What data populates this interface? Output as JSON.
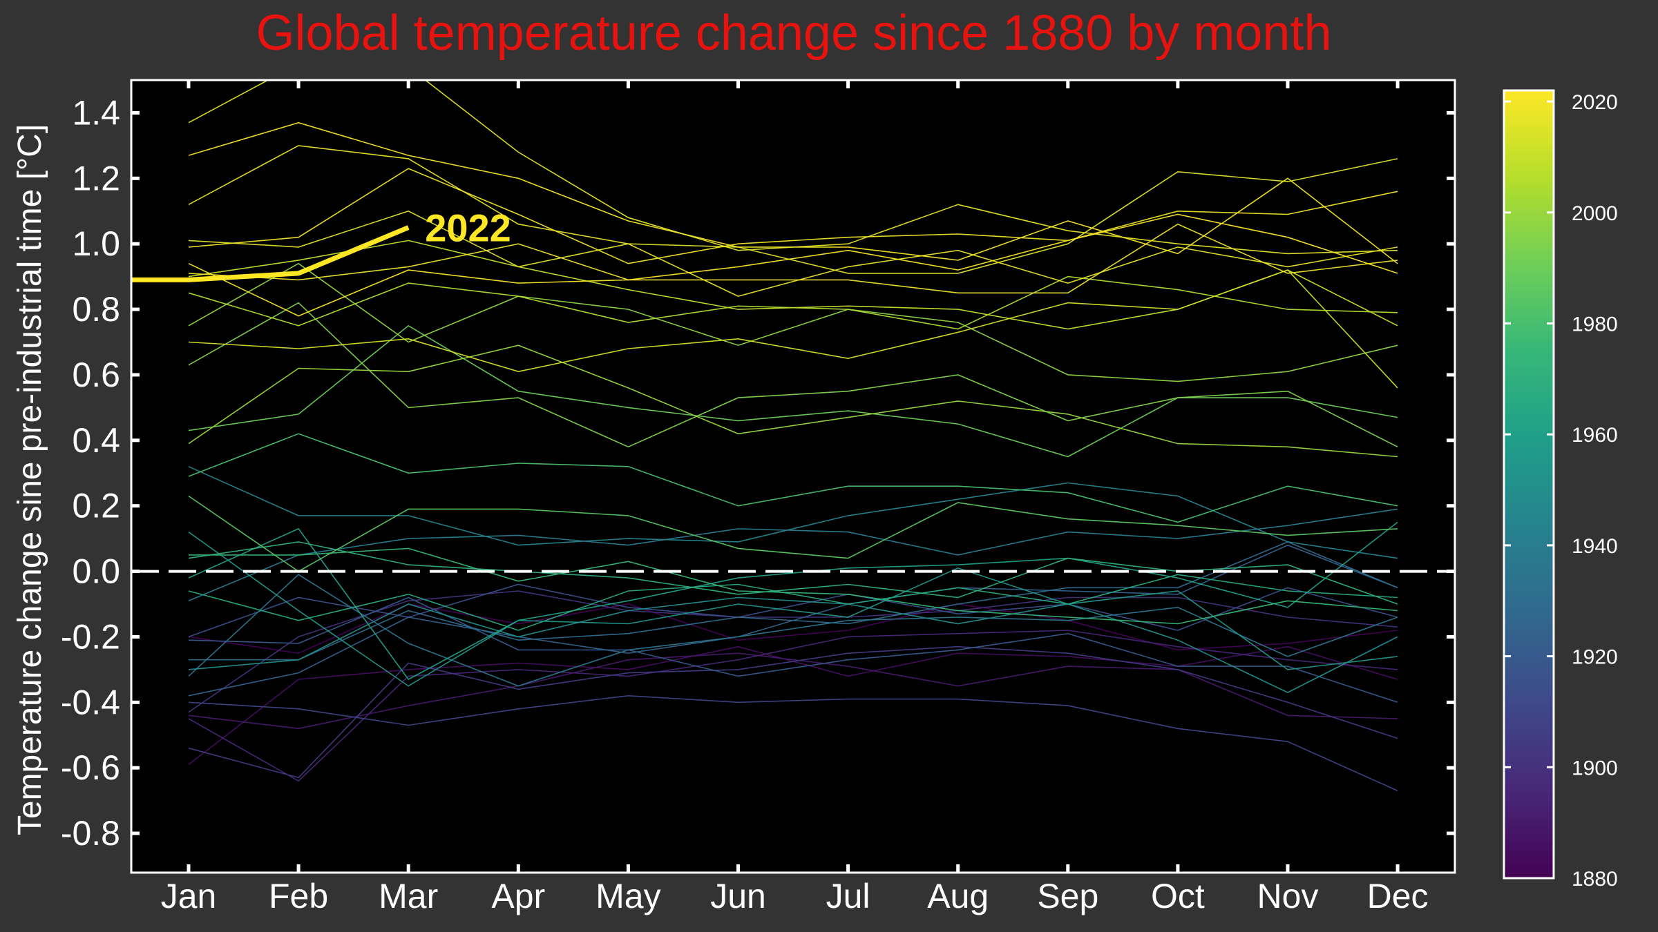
{
  "chart_data": {
    "type": "line",
    "title": "Global temperature change since 1880 by month",
    "ylabel": "Temperature change sine pre-industrial time [°C]",
    "xlabel": "",
    "categories": [
      "Jan",
      "Feb",
      "Mar",
      "Apr",
      "May",
      "Jun",
      "Jul",
      "Aug",
      "Sep",
      "Oct",
      "Nov",
      "Dec"
    ],
    "ylim": [
      -0.92,
      1.5
    ],
    "yticks": [
      -0.8,
      -0.6,
      -0.4,
      -0.2,
      0.0,
      0.2,
      0.4,
      0.6,
      0.8,
      1.0,
      1.2,
      1.4
    ],
    "ytick_labels": [
      "-0.8",
      "-0.6",
      "-0.4",
      "-0.2",
      "0.0",
      "0.2",
      "0.4",
      "0.6",
      "0.8",
      "1.0",
      "1.2",
      "1.4"
    ],
    "grid": false,
    "reference_line": {
      "y": 0.0,
      "color": "#ffffff",
      "style": "dashed"
    },
    "colorbar": {
      "colormap": "viridis",
      "range": [
        1880,
        2022
      ],
      "ticks": [
        1880,
        1900,
        1920,
        1940,
        1960,
        1980,
        2000,
        2020
      ],
      "tick_labels": [
        "1880",
        "1900",
        "1920",
        "1940",
        "1960",
        "1980",
        "2000",
        "2020"
      ],
      "colors": [
        "#440154",
        "#482878",
        "#3e4989",
        "#31688e",
        "#26828e",
        "#1f9e89",
        "#35b779",
        "#6ece58",
        "#b5de2b",
        "#fde725"
      ]
    },
    "highlight": {
      "label": "2022",
      "year": 2022,
      "color": "#fde725",
      "values": [
        0.89,
        0.91,
        1.05
      ]
    },
    "series": [
      {
        "year": 1880,
        "values": [
          -0.2,
          -0.25,
          -0.1,
          -0.16,
          -0.1,
          -0.21,
          -0.18,
          -0.1,
          -0.15,
          -0.24,
          -0.22,
          -0.18
        ]
      },
      {
        "year": 1885,
        "values": [
          -0.59,
          -0.33,
          -0.3,
          -0.28,
          -0.3,
          -0.23,
          -0.32,
          -0.25,
          -0.26,
          -0.29,
          -0.23,
          -0.33
        ]
      },
      {
        "year": 1890,
        "values": [
          -0.44,
          -0.48,
          -0.41,
          -0.35,
          -0.27,
          -0.25,
          -0.29,
          -0.35,
          -0.29,
          -0.3,
          -0.44,
          -0.45
        ]
      },
      {
        "year": 1895,
        "values": [
          -0.45,
          -0.64,
          -0.32,
          -0.3,
          -0.32,
          -0.27,
          -0.2,
          -0.19,
          -0.18,
          -0.23,
          -0.27,
          -0.3
        ]
      },
      {
        "year": 1900,
        "values": [
          -0.43,
          -0.2,
          -0.09,
          -0.06,
          -0.12,
          -0.14,
          -0.14,
          -0.12,
          -0.08,
          -0.08,
          -0.14,
          -0.17
        ]
      },
      {
        "year": 1905,
        "values": [
          -0.54,
          -0.63,
          -0.28,
          -0.36,
          -0.31,
          -0.3,
          -0.25,
          -0.23,
          -0.25,
          -0.3,
          -0.4,
          -0.51
        ]
      },
      {
        "year": 1910,
        "values": [
          -0.4,
          -0.42,
          -0.47,
          -0.42,
          -0.38,
          -0.4,
          -0.39,
          -0.39,
          -0.41,
          -0.48,
          -0.52,
          -0.67
        ]
      },
      {
        "year": 1915,
        "values": [
          -0.2,
          -0.08,
          -0.14,
          -0.04,
          -0.11,
          -0.14,
          -0.07,
          -0.13,
          -0.1,
          -0.18,
          -0.05,
          -0.14
        ]
      },
      {
        "year": 1920,
        "values": [
          -0.21,
          -0.22,
          -0.08,
          -0.24,
          -0.24,
          -0.32,
          -0.27,
          -0.24,
          -0.19,
          -0.29,
          -0.29,
          -0.4
        ]
      },
      {
        "year": 1925,
        "values": [
          -0.38,
          -0.31,
          -0.14,
          -0.2,
          -0.25,
          -0.2,
          -0.1,
          -0.05,
          -0.06,
          -0.07,
          0.08,
          -0.05
        ]
      },
      {
        "year": 1930,
        "values": [
          -0.27,
          -0.27,
          -0.12,
          -0.21,
          -0.19,
          -0.14,
          -0.16,
          -0.1,
          -0.05,
          -0.05,
          0.09,
          -0.05
        ]
      },
      {
        "year": 1935,
        "values": [
          -0.32,
          -0.01,
          -0.22,
          -0.35,
          -0.24,
          -0.2,
          -0.15,
          -0.14,
          -0.15,
          -0.11,
          -0.26,
          -0.14
        ]
      },
      {
        "year": 1940,
        "values": [
          -0.09,
          0.05,
          0.1,
          0.11,
          0.08,
          0.13,
          0.12,
          0.05,
          0.12,
          0.1,
          0.14,
          0.19
        ]
      },
      {
        "year": 1944,
        "values": [
          0.32,
          0.17,
          0.17,
          0.08,
          0.1,
          0.09,
          0.17,
          0.22,
          0.27,
          0.23,
          0.09,
          0.04
        ]
      },
      {
        "year": 1950,
        "values": [
          -0.3,
          -0.27,
          -0.1,
          -0.2,
          -0.12,
          -0.08,
          -0.1,
          -0.16,
          -0.1,
          -0.21,
          -0.37,
          -0.2
        ]
      },
      {
        "year": 1955,
        "values": [
          0.12,
          -0.12,
          -0.35,
          -0.15,
          -0.16,
          -0.1,
          -0.14,
          0.01,
          -0.1,
          -0.06,
          -0.3,
          -0.26
        ]
      },
      {
        "year": 1960,
        "values": [
          -0.02,
          0.13,
          -0.33,
          -0.15,
          -0.09,
          -0.02,
          0.01,
          0.02,
          0.04,
          -0.02,
          -0.11,
          0.15
        ]
      },
      {
        "year": 1965,
        "values": [
          -0.06,
          -0.15,
          -0.07,
          -0.18,
          -0.06,
          -0.04,
          -0.1,
          -0.05,
          -0.1,
          -0.01,
          -0.06,
          -0.08
        ]
      },
      {
        "year": 1970,
        "values": [
          0.04,
          0.09,
          0.02,
          0.0,
          -0.02,
          -0.07,
          -0.04,
          -0.08,
          0.04,
          0.0,
          0.02,
          -0.1
        ]
      },
      {
        "year": 1975,
        "values": [
          0.05,
          0.05,
          0.07,
          -0.03,
          0.03,
          -0.06,
          -0.07,
          -0.12,
          -0.14,
          -0.16,
          -0.09,
          -0.12
        ]
      },
      {
        "year": 1980,
        "values": [
          0.29,
          0.42,
          0.3,
          0.33,
          0.32,
          0.2,
          0.26,
          0.26,
          0.24,
          0.15,
          0.26,
          0.2
        ]
      },
      {
        "year": 1985,
        "values": [
          0.23,
          0.0,
          0.19,
          0.19,
          0.17,
          0.07,
          0.04,
          0.21,
          0.16,
          0.14,
          0.11,
          0.13
        ]
      },
      {
        "year": 1990,
        "values": [
          0.43,
          0.48,
          0.75,
          0.55,
          0.5,
          0.46,
          0.49,
          0.45,
          0.35,
          0.53,
          0.53,
          0.47
        ]
      },
      {
        "year": 1995,
        "values": [
          0.63,
          0.82,
          0.5,
          0.53,
          0.38,
          0.53,
          0.55,
          0.6,
          0.46,
          0.53,
          0.55,
          0.38
        ]
      },
      {
        "year": 1998,
        "values": [
          0.75,
          0.94,
          0.7,
          0.84,
          0.8,
          0.69,
          0.8,
          0.76,
          0.6,
          0.58,
          0.61,
          0.69
        ]
      },
      {
        "year": 2000,
        "values": [
          0.39,
          0.62,
          0.61,
          0.69,
          0.56,
          0.42,
          0.47,
          0.52,
          0.48,
          0.39,
          0.38,
          0.35
        ]
      },
      {
        "year": 2005,
        "values": [
          0.85,
          0.75,
          0.88,
          0.84,
          0.76,
          0.81,
          0.8,
          0.74,
          0.9,
          0.86,
          0.8,
          0.79
        ]
      },
      {
        "year": 2010,
        "values": [
          0.9,
          0.95,
          1.01,
          0.93,
          0.86,
          0.8,
          0.81,
          0.8,
          0.74,
          0.8,
          0.92,
          0.56
        ]
      },
      {
        "year": 2013,
        "values": [
          0.7,
          0.68,
          0.71,
          0.61,
          0.68,
          0.71,
          0.65,
          0.73,
          0.82,
          0.8,
          0.92,
          0.75
        ]
      },
      {
        "year": 2015,
        "values": [
          1.01,
          0.99,
          1.1,
          0.93,
          1.0,
          0.99,
          0.91,
          0.91,
          1.0,
          1.22,
          1.19,
          1.26
        ]
      },
      {
        "year": 2016,
        "values": [
          1.37,
          1.55,
          1.54,
          1.28,
          1.08,
          0.98,
          1.0,
          1.12,
          1.04,
          1.0,
          0.97,
          0.98
        ]
      },
      {
        "year": 2017,
        "values": [
          1.12,
          1.3,
          1.26,
          1.06,
          1.0,
          0.84,
          0.93,
          0.98,
          0.88,
          0.99,
          0.93,
          0.99
        ]
      },
      {
        "year": 2018,
        "values": [
          0.91,
          0.89,
          0.93,
          1.0,
          0.89,
          0.89,
          0.89,
          0.85,
          0.85,
          1.06,
          0.91,
          0.95
        ]
      },
      {
        "year": 2019,
        "values": [
          0.99,
          1.02,
          1.23,
          1.09,
          0.94,
          1.0,
          1.02,
          1.03,
          1.01,
          1.1,
          1.09,
          1.16
        ]
      },
      {
        "year": 2020,
        "values": [
          1.27,
          1.37,
          1.27,
          1.2,
          1.07,
          0.99,
          0.99,
          0.95,
          1.07,
          0.97,
          1.2,
          0.94
        ]
      },
      {
        "year": 2021,
        "values": [
          0.94,
          0.78,
          0.92,
          0.88,
          0.89,
          0.93,
          0.98,
          0.92,
          1.01,
          1.09,
          1.02,
          0.91
        ]
      }
    ]
  }
}
